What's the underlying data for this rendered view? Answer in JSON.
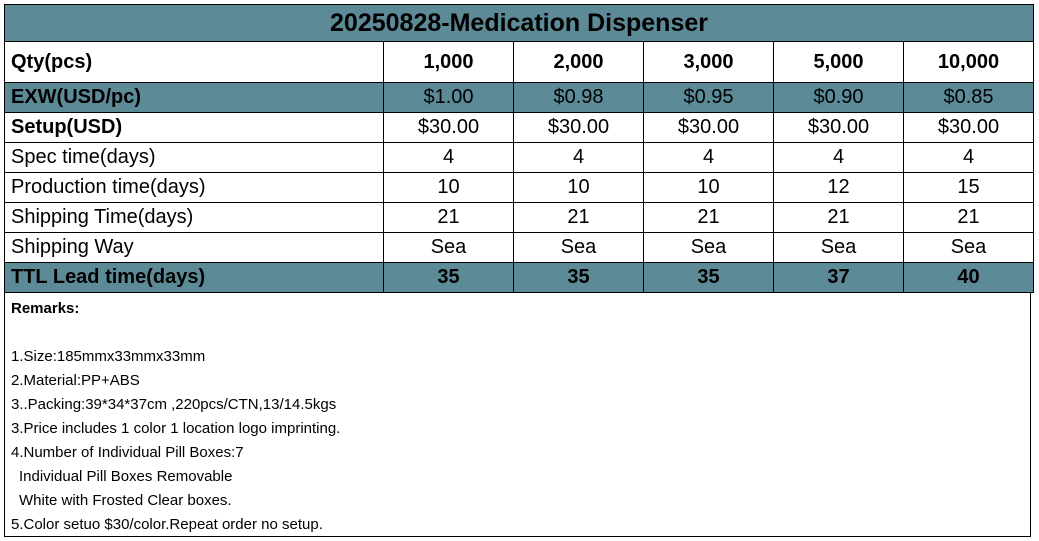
{
  "title": "20250828-Medication Dispenser",
  "columns": [
    "1,000",
    "2,000",
    "3,000",
    "5,000",
    "10,000"
  ],
  "qty_label": "Qty(pcs)",
  "rows": [
    {
      "label": "EXW(USD/pc)",
      "values": [
        "$1.00",
        "$0.98",
        "$0.95",
        "$0.90",
        "$0.85"
      ]
    },
    {
      "label": "Setup(USD)",
      "values": [
        "$30.00",
        "$30.00",
        "$30.00",
        "$30.00",
        "$30.00"
      ]
    },
    {
      "label": "Spec time(days)",
      "values": [
        "4",
        "4",
        "4",
        "4",
        "4"
      ]
    },
    {
      "label": "Production time(days)",
      "values": [
        "10",
        "10",
        "10",
        "12",
        "15"
      ]
    },
    {
      "label": "Shipping Time(days)",
      "values": [
        "21",
        "21",
        "21",
        "21",
        "21"
      ]
    },
    {
      "label": "Shipping Way",
      "values": [
        "Sea",
        "Sea",
        "Sea",
        "Sea",
        "Sea"
      ]
    },
    {
      "label": "TTL Lead time(days)",
      "values": [
        "35",
        "35",
        "35",
        "37",
        "40"
      ]
    }
  ],
  "remarks": {
    "title": "Remarks:",
    "lines": [
      "1.Size:185mmx33mmx33mm",
      "2.Material:PP+ABS",
      "3..Packing:39*34*37cm ,220pcs/CTN,13/14.5kgs",
      "3.Price includes 1 color 1 location logo imprinting.",
      "4.Number of Individual Pill Boxes:7",
      "  Individual Pill Boxes Removable",
      "  White with Frosted Clear boxes.",
      "5.Color setuo $30/color.Repeat order no setup."
    ]
  }
}
